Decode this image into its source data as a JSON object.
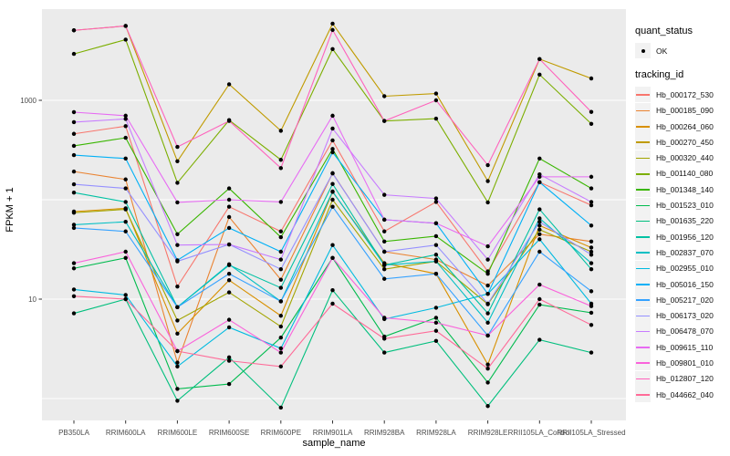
{
  "figure": {
    "x_axis_title": "sample_name",
    "y_axis_title": "FPKM + 1"
  },
  "legend": {
    "quant_status_title": "quant_status",
    "quant_status_items": [
      {
        "label": "OK",
        "glyph": "point-icon"
      }
    ],
    "tracking_id_title": "tracking_id"
  },
  "style": {
    "panel_bg": "#EBEBEB",
    "grid_color": "#FFFFFF",
    "axis_text_color": "#4D4D4D",
    "tick_color": "#333333",
    "point_color": "#000000",
    "legend_key_bg": "#F2F2F2"
  },
  "chart_data": {
    "type": "line",
    "y_scale": "log10",
    "ylim": [
      0.6,
      8300
    ],
    "y_gridlines": [
      1,
      10,
      100,
      1000
    ],
    "y_ticks_labeled": [
      "10",
      "1000"
    ],
    "grid": true,
    "legend_position": "right",
    "xlabel": "sample_name",
    "ylabel": "FPKM + 1",
    "categories": [
      "PB350LA",
      "RRIM600LA",
      "RRIM600LE",
      "RRIM600SE",
      "RRIM600PE",
      "RRIM901LA",
      "RRIM928BA",
      "RRIM928LA",
      "RRIM928LE",
      "RRII105LA_Control",
      "RRII105LA_Stressed"
    ],
    "series": [
      {
        "name": "Hb_000172_530",
        "color": "#F8766D",
        "values": [
          460,
          550,
          13.4,
          85,
          48,
          395,
          48,
          95,
          19,
          150,
          88
        ]
      },
      {
        "name": "Hb_000185_090",
        "color": "#EA8331",
        "values": [
          192,
          160,
          2.3,
          67,
          15.7,
          185,
          30,
          25,
          13.7,
          45,
          38
        ]
      },
      {
        "name": "Hb_000264_060",
        "color": "#D89000",
        "values": [
          76,
          82,
          4.5,
          15.5,
          6.8,
          120,
          23,
          18,
          2.2,
          55,
          33
        ]
      },
      {
        "name": "Hb_000270_450",
        "color": "#C09B00",
        "values": [
          5060,
          5600,
          244,
          1450,
          494,
          5900,
          1100,
          1170,
          154,
          2600,
          1660
        ]
      },
      {
        "name": "Hb_000320_440",
        "color": "#A3A500",
        "values": [
          74,
          80,
          6.1,
          11.7,
          5.3,
          100,
          20,
          24,
          8.9,
          50,
          30
        ]
      },
      {
        "name": "Hb_001140_080",
        "color": "#7CAE00",
        "values": [
          2930,
          4080,
          148,
          632,
          252,
          3280,
          620,
          655,
          94,
          1815,
          580
        ]
      },
      {
        "name": "Hb_001348_140",
        "color": "#39B600",
        "values": [
          348,
          420,
          45,
          130,
          42,
          324,
          38,
          43,
          18,
          260,
          130
        ]
      },
      {
        "name": "Hb_001523_010",
        "color": "#00BB4E",
        "values": [
          20.4,
          26,
          1.25,
          1.4,
          4.1,
          26,
          4.2,
          6.5,
          1.45,
          8.8,
          7.3
        ]
      },
      {
        "name": "Hb_001635_220",
        "color": "#00BF7D",
        "values": [
          7.2,
          10,
          0.95,
          2.6,
          0.81,
          12.3,
          2.9,
          3.8,
          0.84,
          3.9,
          2.9
        ]
      },
      {
        "name": "Hb_001956_120",
        "color": "#00C1A3",
        "values": [
          118,
          95,
          8.3,
          22,
          13,
          144,
          22,
          28,
          7.2,
          80,
          20
        ]
      },
      {
        "name": "Hb_002837_070",
        "color": "#00BFC4",
        "values": [
          56,
          60,
          8.3,
          22.4,
          9.5,
          121,
          22,
          24,
          5.8,
          65,
          23
        ]
      },
      {
        "name": "Hb_002955_010",
        "color": "#00BAE0",
        "values": [
          12.5,
          11,
          2.1,
          5.2,
          3.2,
          35,
          6.3,
          8.2,
          11.3,
          40,
          9
        ]
      },
      {
        "name": "Hb_005016_150",
        "color": "#00B0F6",
        "values": [
          281,
          260,
          24.6,
          52,
          30,
          300,
          63,
          58,
          11.3,
          150,
          55
        ]
      },
      {
        "name": "Hb_005217_020",
        "color": "#35A2FF",
        "values": [
          52,
          48,
          8.3,
          18,
          9.5,
          85,
          16,
          18,
          4.3,
          30,
          12
        ]
      },
      {
        "name": "Hb_006173_020",
        "color": "#9590FF",
        "values": [
          143,
          130,
          24,
          35.5,
          20,
          184,
          30,
          35,
          9,
          60,
          28
        ]
      },
      {
        "name": "Hb_006478_070",
        "color": "#C77CFF",
        "values": [
          603,
          650,
          35,
          35.5,
          25,
          520,
          112,
          103,
          25,
          180,
          95
        ]
      },
      {
        "name": "Hb_009615_110",
        "color": "#E76BF3",
        "values": [
          760,
          700,
          94,
          100,
          95,
          700,
          63,
          58,
          34,
          170,
          170
        ]
      },
      {
        "name": "Hb_009801_010",
        "color": "#FA62DB",
        "values": [
          23,
          30,
          3.0,
          6.2,
          2.9,
          26,
          6.5,
          5.8,
          4.3,
          14,
          8.5
        ]
      },
      {
        "name": "Hb_012807_120",
        "color": "#FF62BC",
        "values": [
          5060,
          5600,
          340,
          620,
          208,
          5100,
          620,
          1000,
          223,
          2600,
          764
        ]
      },
      {
        "name": "Hb_044662_040",
        "color": "#FF6A98",
        "values": [
          10.7,
          10,
          3.0,
          2.4,
          2.1,
          9,
          4.0,
          4.8,
          2.0,
          10,
          5.5
        ]
      }
    ]
  }
}
